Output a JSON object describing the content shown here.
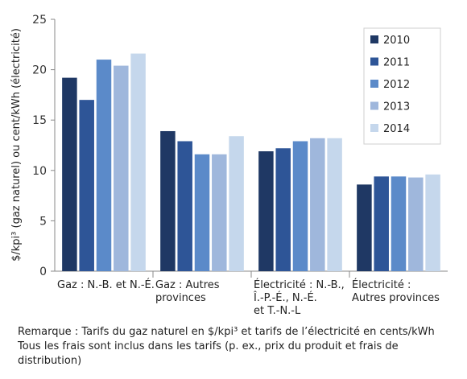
{
  "chart_data": {
    "type": "bar",
    "categories": [
      [
        "Gaz : N.-B. et N.-É."
      ],
      [
        "Gaz : Autres",
        "provinces"
      ],
      [
        "Électricité : N.-B.,",
        "Î.-P.-É., N.-É.",
        "et T.-N.-L"
      ],
      [
        "Électricité :",
        "Autres provinces"
      ]
    ],
    "series": [
      {
        "name": "2010",
        "color": "#1f3864",
        "values": [
          19.2,
          13.9,
          11.9,
          8.6
        ]
      },
      {
        "name": "2011",
        "color": "#2e5597",
        "values": [
          17.0,
          12.9,
          12.2,
          9.4
        ]
      },
      {
        "name": "2012",
        "color": "#5b8ac9",
        "values": [
          21.0,
          11.6,
          12.9,
          9.4
        ]
      },
      {
        "name": "2013",
        "color": "#9fb7dc",
        "values": [
          20.4,
          11.6,
          13.2,
          9.3
        ]
      },
      {
        "name": "2014",
        "color": "#c5d7ec",
        "values": [
          21.6,
          13.4,
          13.2,
          9.6
        ]
      }
    ],
    "ylabel": "$/kpi³ (gaz naturel) ou cent/kWh (électricité)",
    "xlabel": "",
    "ylim": [
      0,
      25
    ],
    "yticks": [
      0,
      5,
      10,
      15,
      20,
      25
    ],
    "grid": false,
    "legend": "top-right"
  },
  "note": "Remarque : Tarifs du gaz naturel en $/kpi³ et tarifs de l’électricité en cents/kWh Tous les frais sont inclus dans les tarifs (p. ex., prix du produit et frais de distribution)"
}
